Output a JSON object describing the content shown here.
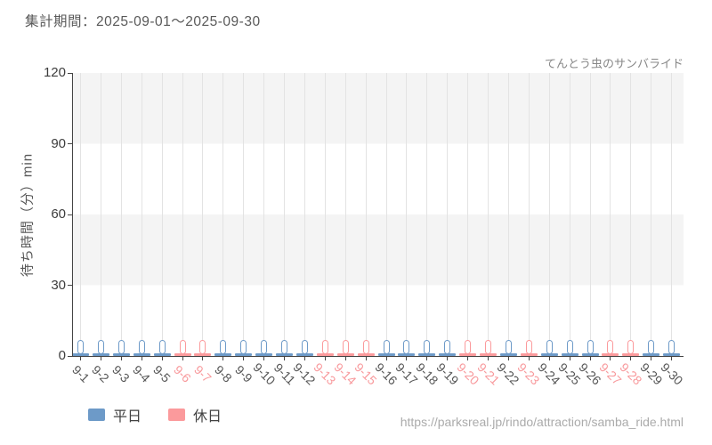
{
  "header": {
    "title": "集計期間：2025-09-01～2025-09-30"
  },
  "chart": {
    "attraction": "てんとう虫のサンバライド",
    "y_axis_label": "待ち時間（分）min"
  },
  "legend": {
    "items": [
      {
        "label": "平日",
        "color": "#6d9ac8"
      },
      {
        "label": "休日",
        "color": "#fb9a9c"
      }
    ]
  },
  "footer": {
    "url": "https://parksreal.jp/rindo/attraction/samba_ride.html"
  },
  "colors": {
    "weekday": "#6d9ac8",
    "holiday": "#fb9a9c",
    "weekday_label": "#555555",
    "holiday_label": "#f8999c",
    "band": "#f4f4f4",
    "gridline": "#e3e3e3",
    "axis": "#444444",
    "capsule_fill": "#ffffff"
  },
  "chart_data": {
    "type": "range_bar",
    "title": "てんとう虫のサンバライド",
    "xlabel": "",
    "ylabel": "待ち時間（分）min",
    "ylim": [
      0,
      120
    ],
    "y_ticks": [
      0,
      30,
      60,
      90,
      120
    ],
    "grid": "vertical gridline per day; alternating gray bands every 30 min",
    "legend_position": "bottom-left",
    "categories": [
      "9-1",
      "9-2",
      "9-3",
      "9-4",
      "9-5",
      "9-6",
      "9-7",
      "9-8",
      "9-9",
      "9-10",
      "9-11",
      "9-12",
      "9-13",
      "9-14",
      "9-15",
      "9-16",
      "9-17",
      "9-18",
      "9-19",
      "9-20",
      "9-21",
      "9-22",
      "9-23",
      "9-24",
      "9-25",
      "9-26",
      "9-27",
      "9-28",
      "9-29",
      "9-30"
    ],
    "days": [
      {
        "date": "9-1",
        "day_type": "weekday",
        "wait_min": 0,
        "wait_max": 5,
        "wait_typical": 0
      },
      {
        "date": "9-2",
        "day_type": "weekday",
        "wait_min": 0,
        "wait_max": 5,
        "wait_typical": 0
      },
      {
        "date": "9-3",
        "day_type": "weekday",
        "wait_min": 0,
        "wait_max": 5,
        "wait_typical": 0
      },
      {
        "date": "9-4",
        "day_type": "weekday",
        "wait_min": 0,
        "wait_max": 5,
        "wait_typical": 0
      },
      {
        "date": "9-5",
        "day_type": "weekday",
        "wait_min": 0,
        "wait_max": 5,
        "wait_typical": 0
      },
      {
        "date": "9-6",
        "day_type": "holiday",
        "wait_min": 0,
        "wait_max": 5,
        "wait_typical": 0
      },
      {
        "date": "9-7",
        "day_type": "holiday",
        "wait_min": 0,
        "wait_max": 5,
        "wait_typical": 0
      },
      {
        "date": "9-8",
        "day_type": "weekday",
        "wait_min": 0,
        "wait_max": 5,
        "wait_typical": 0
      },
      {
        "date": "9-9",
        "day_type": "weekday",
        "wait_min": 0,
        "wait_max": 5,
        "wait_typical": 0
      },
      {
        "date": "9-10",
        "day_type": "weekday",
        "wait_min": 0,
        "wait_max": 5,
        "wait_typical": 0
      },
      {
        "date": "9-11",
        "day_type": "weekday",
        "wait_min": 0,
        "wait_max": 5,
        "wait_typical": 0
      },
      {
        "date": "9-12",
        "day_type": "weekday",
        "wait_min": 0,
        "wait_max": 5,
        "wait_typical": 0
      },
      {
        "date": "9-13",
        "day_type": "holiday",
        "wait_min": 0,
        "wait_max": 5,
        "wait_typical": 0
      },
      {
        "date": "9-14",
        "day_type": "holiday",
        "wait_min": 0,
        "wait_max": 5,
        "wait_typical": 0
      },
      {
        "date": "9-15",
        "day_type": "holiday",
        "wait_min": 0,
        "wait_max": 5,
        "wait_typical": 0
      },
      {
        "date": "9-16",
        "day_type": "weekday",
        "wait_min": 0,
        "wait_max": 5,
        "wait_typical": 0
      },
      {
        "date": "9-17",
        "day_type": "weekday",
        "wait_min": 0,
        "wait_max": 5,
        "wait_typical": 0
      },
      {
        "date": "9-18",
        "day_type": "weekday",
        "wait_min": 0,
        "wait_max": 5,
        "wait_typical": 0
      },
      {
        "date": "9-19",
        "day_type": "weekday",
        "wait_min": 0,
        "wait_max": 5,
        "wait_typical": 0
      },
      {
        "date": "9-20",
        "day_type": "holiday",
        "wait_min": 0,
        "wait_max": 5,
        "wait_typical": 0
      },
      {
        "date": "9-21",
        "day_type": "holiday",
        "wait_min": 0,
        "wait_max": 5,
        "wait_typical": 0
      },
      {
        "date": "9-22",
        "day_type": "weekday",
        "wait_min": 0,
        "wait_max": 5,
        "wait_typical": 0
      },
      {
        "date": "9-23",
        "day_type": "holiday",
        "wait_min": 0,
        "wait_max": 5,
        "wait_typical": 0
      },
      {
        "date": "9-24",
        "day_type": "weekday",
        "wait_min": 0,
        "wait_max": 5,
        "wait_typical": 0
      },
      {
        "date": "9-25",
        "day_type": "weekday",
        "wait_min": 0,
        "wait_max": 5,
        "wait_typical": 0
      },
      {
        "date": "9-26",
        "day_type": "weekday",
        "wait_min": 0,
        "wait_max": 5,
        "wait_typical": 0
      },
      {
        "date": "9-27",
        "day_type": "holiday",
        "wait_min": 0,
        "wait_max": 5,
        "wait_typical": 0
      },
      {
        "date": "9-28",
        "day_type": "holiday",
        "wait_min": 0,
        "wait_max": 5,
        "wait_typical": 0
      },
      {
        "date": "9-29",
        "day_type": "weekday",
        "wait_min": 0,
        "wait_max": 5,
        "wait_typical": 0
      },
      {
        "date": "9-30",
        "day_type": "weekday",
        "wait_min": 0,
        "wait_max": 5,
        "wait_typical": 0
      }
    ]
  }
}
